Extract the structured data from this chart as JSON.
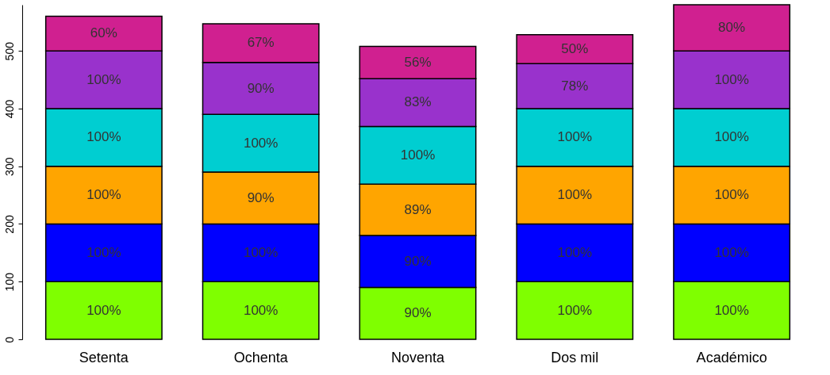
{
  "chart_data": {
    "type": "bar",
    "stacked": true,
    "categories": [
      "Setenta",
      "Ochenta",
      "Noventa",
      "Dos mil",
      "Académico"
    ],
    "series": [
      {
        "color": "#7fff00",
        "values": [
          100,
          100,
          90,
          100,
          100
        ],
        "value_labels": [
          "100%",
          "100%",
          "90%",
          "100%",
          "100%"
        ]
      },
      {
        "color": "#0000ff",
        "values": [
          100,
          100,
          90,
          100,
          100
        ],
        "value_labels": [
          "100%",
          "100%",
          "90%",
          "100%",
          "100%"
        ]
      },
      {
        "color": "#ffa500",
        "values": [
          100,
          90,
          89,
          100,
          100
        ],
        "value_labels": [
          "100%",
          "90%",
          "89%",
          "100%",
          "100%"
        ]
      },
      {
        "color": "#00ced1",
        "values": [
          100,
          100,
          100,
          100,
          100
        ],
        "value_labels": [
          "100%",
          "100%",
          "100%",
          "100%",
          "100%"
        ]
      },
      {
        "color": "#9932cc",
        "values": [
          100,
          90,
          83,
          78,
          100
        ],
        "value_labels": [
          "100%",
          "90%",
          "83%",
          "78%",
          "100%"
        ]
      },
      {
        "color": "#d02090",
        "values": [
          60,
          67,
          56,
          50,
          80
        ],
        "value_labels": [
          "60%",
          "67%",
          "56%",
          "50%",
          "80%"
        ]
      }
    ],
    "ylim": [
      0,
      580
    ],
    "yticks": [
      0,
      100,
      200,
      300,
      400,
      500
    ],
    "grid": false
  }
}
